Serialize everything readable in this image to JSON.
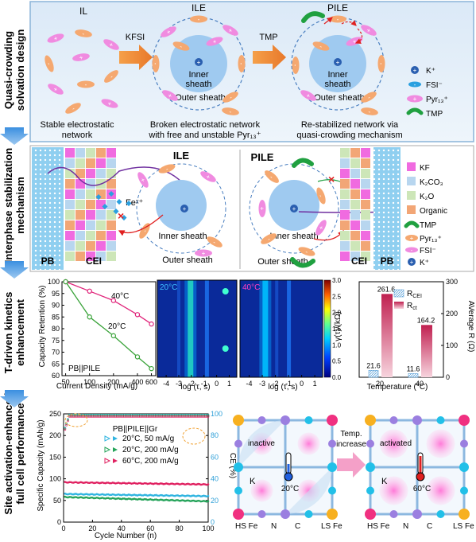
{
  "rows": [
    {
      "label": [
        "Quasi-crowding",
        "solvation design"
      ]
    },
    {
      "label": [
        "Interphase stabilization",
        "mechanism"
      ]
    },
    {
      "label": [
        "T-driven kinetics",
        "enhancement"
      ]
    },
    {
      "label": [
        "Site activation-enhanced",
        "full cell performance"
      ]
    }
  ],
  "panel1": {
    "titles": [
      "IL",
      "ILE",
      "PILE"
    ],
    "arrows": [
      "KFSI",
      "TMP"
    ],
    "inner": [
      "Inner",
      "sheath"
    ],
    "outer": "Outer sheath",
    "captions": [
      [
        "Stable electrostatic",
        "network"
      ],
      [
        "Broken electrostatic network",
        "with free and unstable Pyr₁₃⁺"
      ],
      [
        "Re-stabilized network via",
        "quasi-crowding mechanism"
      ]
    ],
    "legend": [
      "K⁺",
      "FSI⁻",
      "Pyr₁₃⁺",
      "TMP"
    ]
  },
  "panel2": {
    "titles": [
      "ILE",
      "PILE"
    ],
    "pb": "PB",
    "cei": "CEI",
    "fe": "Feˣ⁺",
    "inner": [
      "Inner sheath",
      "Inner sheath"
    ],
    "outer": [
      "Outer sheath",
      "Outer sheath"
    ],
    "legend": [
      "KF",
      "K₂CO₃",
      "K₂O",
      "Organic",
      "TMP",
      "Pyr₁₃⁺",
      "FSI⁻",
      "K⁺"
    ]
  },
  "chart_retention": {
    "type": "line",
    "ylabel": "Capacity Retention (%)",
    "xlabel": "Current Density (mA/g)",
    "x": [
      50,
      100,
      200,
      400,
      600
    ],
    "xticks": [
      "50",
      "100",
      "200",
      "400",
      "600"
    ],
    "ylim": [
      60,
      100
    ],
    "yticks": [
      60,
      65,
      70,
      75,
      80,
      85,
      90,
      95,
      100
    ],
    "note": "PB||PILE",
    "series": [
      {
        "name": "40°C",
        "x": [
          50,
          100,
          200,
          400,
          600
        ],
        "values": [
          100,
          96,
          92,
          86,
          82
        ],
        "color": "#e0247a"
      },
      {
        "name": "20°C",
        "x": [
          50,
          100,
          200,
          400,
          600
        ],
        "values": [
          100,
          85,
          77,
          68,
          63
        ],
        "color": "#3aa33a"
      }
    ]
  },
  "chart_drt": {
    "type": "heatmap",
    "panels": [
      "20°C",
      "40°C"
    ],
    "xlabel": "log (τ, s)",
    "xticks": [
      "-4",
      "-3",
      "-2",
      "-1",
      "0",
      "1"
    ],
    "colorbar_label": "γ(τ)/(kΩ)",
    "colorbar_ticks": [
      "0.0",
      "0.5",
      "1.0",
      "1.5",
      "2.0",
      "2.5",
      "3.0"
    ],
    "clim": [
      0,
      3
    ]
  },
  "chart_resist": {
    "type": "bar",
    "ylabel": "AVerage R (Ω)",
    "xlabel": "Temperature (°C)",
    "categories": [
      "20",
      "40"
    ],
    "ylim": [
      0,
      300
    ],
    "yticks": [
      "0",
      "100",
      "200",
      "300"
    ],
    "series": [
      {
        "name": "R_CEI",
        "values": [
          21.6,
          11.6
        ]
      },
      {
        "name": "R_ct",
        "values": [
          261.6,
          164.2
        ]
      }
    ],
    "labels": {
      "R_CEI": [
        "21.6",
        "11.6"
      ],
      "R_ct": [
        "261.6",
        "164.2"
      ]
    }
  },
  "chart_cycle": {
    "type": "scatter",
    "ylabel": "Specific Capacity (mAh/g)",
    "y2label": "CE (%)",
    "xlabel": "Cycle Number (n)",
    "xlim": [
      0,
      100
    ],
    "ylim": [
      0,
      250
    ],
    "y2lim": [
      0,
      100
    ],
    "xticks": [
      "0",
      "20",
      "40",
      "60",
      "80",
      "100"
    ],
    "yticks": [
      "0",
      "50",
      "100",
      "150",
      "200",
      "250"
    ],
    "y2ticks": [
      "0",
      "20",
      "40",
      "60",
      "80",
      "100"
    ],
    "title": "PB||PILE||Gr",
    "series": [
      {
        "name": "20°C,  50 mA/g",
        "capacity_start": 65,
        "capacity_end": 60,
        "ce": 99,
        "color": "#2fb4e0"
      },
      {
        "name": "20°C, 200 mA/g",
        "capacity_start": 58,
        "capacity_end": 48,
        "ce": 98.5,
        "color": "#25a35a"
      },
      {
        "name": "60°C, 200 mA/g",
        "capacity_start": 92,
        "capacity_end": 87,
        "ce": 97.5,
        "color": "#e02060"
      }
    ]
  },
  "panel4": {
    "left_tag": "inactive",
    "right_tag": "activated",
    "arrow_text": [
      "Temp.",
      "increase"
    ],
    "temps": [
      "20°C",
      "60°C"
    ],
    "k": "K",
    "sites": [
      "HS Fe",
      "N",
      "C",
      "LS Fe"
    ]
  }
}
